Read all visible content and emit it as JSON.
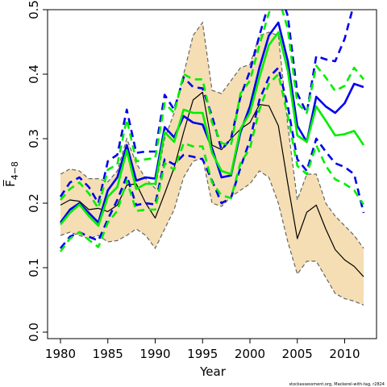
{
  "chart_data": {
    "type": "line",
    "xlabel": "Year",
    "ylabel": "F̅",
    "ylabel_subscript": "4−8",
    "credit": "stockassessment.org, Mackerel-with-tag, r2824",
    "xlim": [
      1980,
      2012
    ],
    "ylim": [
      0,
      0.5
    ],
    "x_ticks": [
      1980,
      1985,
      1990,
      1995,
      2000,
      2005,
      2010
    ],
    "y_ticks": [
      "0.0",
      "0.1",
      "0.2",
      "0.3",
      "0.4",
      "0.5"
    ],
    "x": [
      1980,
      1981,
      1982,
      1983,
      1984,
      1985,
      1986,
      1987,
      1988,
      1989,
      1990,
      1991,
      1992,
      1993,
      1994,
      1995,
      1996,
      1997,
      1998,
      1999,
      2000,
      2001,
      2002,
      2003,
      2004,
      2005,
      2006,
      2007,
      2008,
      2009,
      2010,
      2011,
      2012
    ],
    "band": {
      "color": "#f5deb3",
      "lower": [
        0.15,
        0.155,
        0.15,
        0.145,
        0.15,
        0.14,
        0.142,
        0.15,
        0.16,
        0.15,
        0.13,
        0.16,
        0.19,
        0.24,
        0.265,
        0.27,
        0.2,
        0.195,
        0.21,
        0.22,
        0.23,
        0.25,
        0.24,
        0.2,
        0.14,
        0.09,
        0.11,
        0.11,
        0.085,
        0.06,
        0.052,
        0.048,
        0.042
      ],
      "upper": [
        0.245,
        0.253,
        0.25,
        0.238,
        0.238,
        0.233,
        0.25,
        0.3,
        0.262,
        0.238,
        0.223,
        0.3,
        0.34,
        0.4,
        0.46,
        0.48,
        0.375,
        0.37,
        0.39,
        0.41,
        0.415,
        0.46,
        0.465,
        0.46,
        0.32,
        0.205,
        0.245,
        0.245,
        0.2,
        0.18,
        0.165,
        0.15,
        0.13
      ]
    },
    "series": [
      {
        "role": "black-estimate",
        "color": "#000000",
        "style": "solid",
        "values": [
          0.197,
          0.205,
          0.203,
          0.19,
          0.192,
          0.187,
          0.197,
          0.228,
          0.23,
          0.2,
          0.177,
          0.215,
          0.255,
          0.31,
          0.36,
          0.372,
          0.29,
          0.283,
          0.3,
          0.315,
          0.325,
          0.353,
          0.351,
          0.32,
          0.23,
          0.145,
          0.186,
          0.197,
          0.16,
          0.128,
          0.112,
          0.102,
          0.086
        ]
      },
      {
        "role": "blue-estimate",
        "color": "#0000ee",
        "style": "solid",
        "values": [
          0.17,
          0.19,
          0.2,
          0.185,
          0.17,
          0.22,
          0.24,
          0.29,
          0.235,
          0.24,
          0.238,
          0.318,
          0.302,
          0.335,
          0.325,
          0.322,
          0.285,
          0.24,
          0.243,
          0.31,
          0.35,
          0.41,
          0.46,
          0.48,
          0.42,
          0.32,
          0.295,
          0.365,
          0.35,
          0.34,
          0.355,
          0.385,
          0.38
        ]
      },
      {
        "role": "blue-upper",
        "color": "#0000ee",
        "style": "dashed",
        "values": [
          0.21,
          0.232,
          0.24,
          0.225,
          0.2,
          0.265,
          0.275,
          0.345,
          0.278,
          0.28,
          0.28,
          0.368,
          0.345,
          0.395,
          0.38,
          0.378,
          0.335,
          0.283,
          0.3,
          0.365,
          0.405,
          0.46,
          0.51,
          0.535,
          0.49,
          0.37,
          0.34,
          0.428,
          0.423,
          0.42,
          0.455,
          0.51,
          0.51
        ]
      },
      {
        "role": "blue-lower",
        "color": "#0000ee",
        "style": "dashed",
        "values": [
          0.13,
          0.148,
          0.155,
          0.148,
          0.142,
          0.175,
          0.205,
          0.242,
          0.197,
          0.2,
          0.198,
          0.268,
          0.26,
          0.275,
          0.272,
          0.268,
          0.235,
          0.2,
          0.208,
          0.255,
          0.298,
          0.36,
          0.395,
          0.41,
          0.35,
          0.268,
          0.25,
          0.3,
          0.28,
          0.262,
          0.256,
          0.245,
          0.185
        ]
      },
      {
        "role": "green-estimate",
        "color": "#00ee00",
        "style": "solid",
        "values": [
          0.167,
          0.185,
          0.198,
          0.18,
          0.165,
          0.21,
          0.225,
          0.282,
          0.222,
          0.23,
          0.23,
          0.31,
          0.295,
          0.345,
          0.34,
          0.34,
          0.278,
          0.25,
          0.245,
          0.315,
          0.34,
          0.395,
          0.445,
          0.465,
          0.405,
          0.305,
          0.295,
          0.35,
          0.328,
          0.305,
          0.307,
          0.312,
          0.29
        ]
      },
      {
        "role": "green-upper",
        "color": "#00ee00",
        "style": "dashed",
        "values": [
          0.205,
          0.222,
          0.232,
          0.215,
          0.192,
          0.252,
          0.26,
          0.33,
          0.265,
          0.268,
          0.27,
          0.355,
          0.34,
          0.4,
          0.392,
          0.392,
          0.325,
          0.293,
          0.29,
          0.37,
          0.39,
          0.445,
          0.495,
          0.52,
          0.47,
          0.355,
          0.34,
          0.413,
          0.395,
          0.374,
          0.382,
          0.41,
          0.392
        ]
      },
      {
        "role": "green-lower",
        "color": "#00ee00",
        "style": "dashed",
        "values": [
          0.125,
          0.145,
          0.155,
          0.143,
          0.132,
          0.17,
          0.188,
          0.235,
          0.188,
          0.19,
          0.19,
          0.262,
          0.252,
          0.293,
          0.288,
          0.288,
          0.232,
          0.212,
          0.208,
          0.262,
          0.285,
          0.345,
          0.385,
          0.4,
          0.335,
          0.258,
          0.245,
          0.29,
          0.258,
          0.237,
          0.23,
          0.22,
          0.198
        ]
      }
    ],
    "grid": false,
    "legend": "none"
  }
}
